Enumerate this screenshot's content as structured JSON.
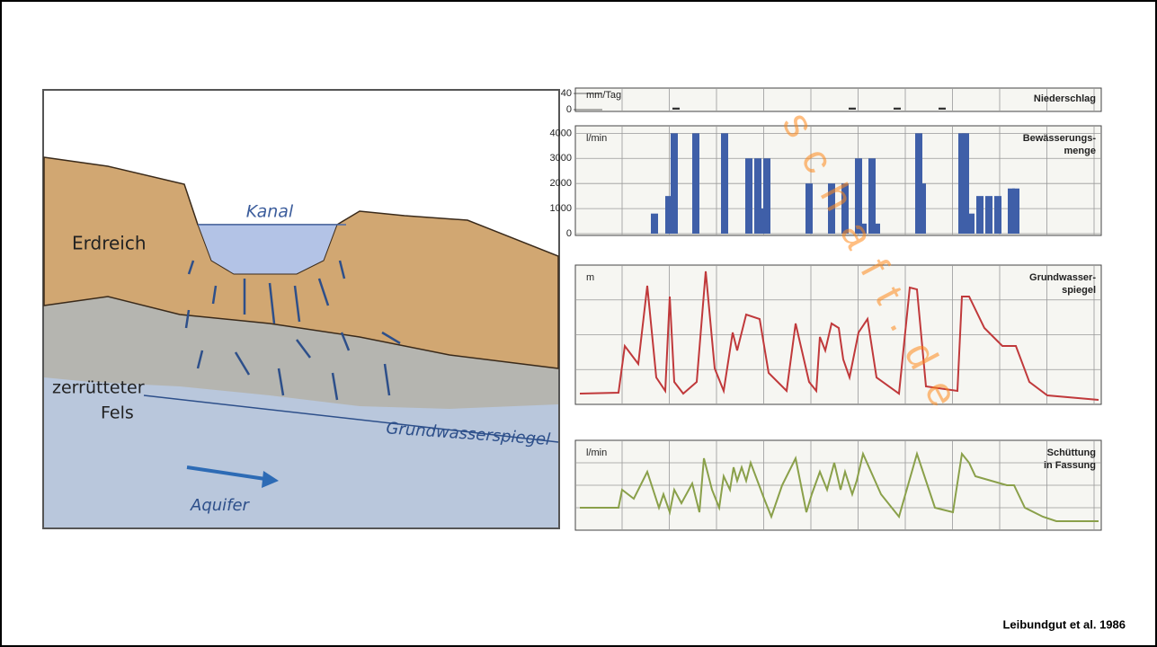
{
  "slide": {
    "citation": "Leibundgut et al. 1986",
    "watermark": "schaft.de"
  },
  "diagram": {
    "labels": {
      "kanal": "Kanal",
      "erdreich": "Erdreich",
      "fels": [
        "zerrütteter",
        "Fels"
      ],
      "grundwasserspiegel": "Grundwasserspiegel",
      "aquifer": "Aquifer"
    }
  },
  "chart_data": [
    {
      "type": "bar",
      "title": [
        "Niederschlag"
      ],
      "unit": "mm/Tag",
      "color": "#333333",
      "x": [
        112,
        308,
        358,
        408
      ],
      "values": [
        5,
        5,
        5,
        5
      ],
      "xlim": [
        0,
        585
      ],
      "ylim": [
        0,
        40
      ],
      "yticks": [
        0,
        40
      ]
    },
    {
      "type": "bar",
      "title": [
        "Bewässerungs-",
        "menge"
      ],
      "unit": "l/min",
      "color": "#3f5fa8",
      "x": [
        88,
        104,
        110,
        134,
        166,
        193,
        203,
        208,
        213,
        260,
        285,
        300,
        315,
        320,
        330,
        335,
        382,
        386,
        430,
        434,
        440,
        450,
        460,
        470,
        485,
        490
      ],
      "values": [
        800,
        1500,
        4000,
        4000,
        4000,
        3000,
        3000,
        1000,
        3000,
        2000,
        2000,
        2000,
        3000,
        400,
        3000,
        400,
        4000,
        2000,
        4000,
        4000,
        800,
        1500,
        1500,
        1500,
        1800,
        1800
      ],
      "xlim": [
        0,
        585
      ],
      "ylim": [
        0,
        4300
      ],
      "yticks": [
        0,
        1000,
        2000,
        3000,
        4000
      ],
      "grid": true
    },
    {
      "type": "line",
      "title": [
        "Grundwasser-",
        "spiegel"
      ],
      "unit": "m",
      "color": "#c0393b",
      "x": [
        5,
        48,
        55,
        70,
        80,
        90,
        100,
        105,
        110,
        120,
        135,
        145,
        155,
        165,
        175,
        180,
        190,
        205,
        215,
        235,
        245,
        260,
        268,
        272,
        278,
        285,
        293,
        298,
        305,
        315,
        325,
        335,
        360,
        372,
        380,
        390,
        425,
        430,
        438,
        455,
        470,
        475,
        480,
        490,
        505,
        525,
        582
      ],
      "values": [
        12,
        13,
        65,
        45,
        132,
        30,
        15,
        120,
        25,
        12,
        25,
        148,
        40,
        15,
        80,
        60,
        100,
        95,
        35,
        15,
        90,
        25,
        15,
        75,
        60,
        90,
        85,
        50,
        30,
        80,
        95,
        30,
        12,
        130,
        128,
        20,
        15,
        120,
        120,
        85,
        70,
        65,
        65,
        65,
        25,
        10,
        5
      ],
      "xlim": [
        0,
        585
      ],
      "ylim": [
        0,
        155
      ]
    },
    {
      "type": "line",
      "title": [
        "Schüttung",
        "in Fassung"
      ],
      "unit": "l/min",
      "color": "#8aa04a",
      "x": [
        5,
        48,
        52,
        65,
        80,
        93,
        98,
        105,
        110,
        118,
        130,
        138,
        143,
        152,
        160,
        165,
        172,
        176,
        180,
        185,
        190,
        195,
        210,
        218,
        230,
        245,
        257,
        263,
        272,
        280,
        288,
        295,
        300,
        308,
        313,
        320,
        340,
        360,
        380,
        400,
        420,
        430,
        438,
        445,
        480,
        488,
        500,
        520,
        535,
        582
      ],
      "values": [
        25,
        25,
        45,
        35,
        65,
        25,
        40,
        20,
        45,
        30,
        52,
        20,
        80,
        45,
        25,
        60,
        45,
        70,
        55,
        70,
        55,
        75,
        35,
        15,
        50,
        80,
        20,
        40,
        65,
        45,
        75,
        45,
        65,
        40,
        55,
        85,
        40,
        15,
        85,
        25,
        20,
        85,
        75,
        60,
        50,
        50,
        25,
        15,
        10,
        10
      ],
      "xlim": [
        0,
        585
      ],
      "ylim": [
        0,
        100
      ]
    }
  ]
}
